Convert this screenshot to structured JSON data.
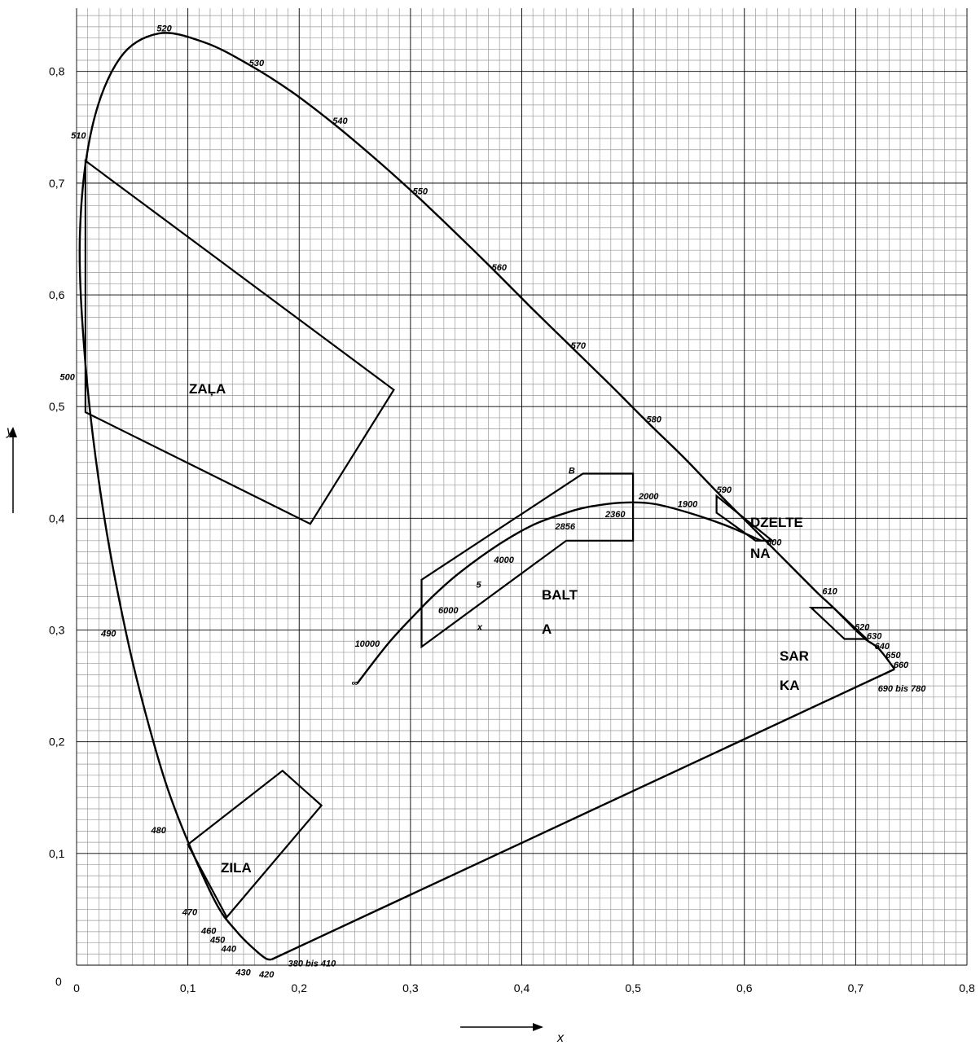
{
  "chart_data": {
    "type": "line",
    "title": "",
    "xlabel": "x",
    "ylabel": "y",
    "xlim": [
      0,
      0.8
    ],
    "ylim": [
      0,
      0.85
    ],
    "grid": true,
    "x_ticks": [
      "0",
      "0,1",
      "0,2",
      "0,3",
      "0,4",
      "0,5",
      "0,6",
      "0,7",
      "0,8"
    ],
    "y_ticks": [
      "0",
      "0,1",
      "0,2",
      "0,3",
      "0,4",
      "0,5",
      "0,6",
      "0,7",
      "0,8"
    ],
    "spectral_locus": [
      [
        0.175,
        0.005
      ],
      [
        0.17,
        0.006
      ],
      [
        0.16,
        0.014
      ],
      [
        0.144,
        0.03
      ],
      [
        0.124,
        0.058
      ],
      [
        0.091,
        0.133
      ],
      [
        0.069,
        0.2
      ],
      [
        0.045,
        0.295
      ],
      [
        0.023,
        0.413
      ],
      [
        0.008,
        0.538
      ],
      [
        0.003,
        0.654
      ],
      [
        0.014,
        0.75
      ],
      [
        0.039,
        0.812
      ],
      [
        0.074,
        0.834
      ],
      [
        0.115,
        0.826
      ],
      [
        0.155,
        0.806
      ],
      [
        0.193,
        0.782
      ],
      [
        0.23,
        0.754
      ],
      [
        0.266,
        0.724
      ],
      [
        0.302,
        0.692
      ],
      [
        0.337,
        0.659
      ],
      [
        0.373,
        0.624
      ],
      [
        0.408,
        0.589
      ],
      [
        0.444,
        0.554
      ],
      [
        0.479,
        0.52
      ],
      [
        0.512,
        0.487
      ],
      [
        0.545,
        0.455
      ],
      [
        0.575,
        0.424
      ],
      [
        0.603,
        0.396
      ],
      [
        0.627,
        0.372
      ],
      [
        0.648,
        0.351
      ],
      [
        0.666,
        0.333
      ],
      [
        0.68,
        0.32
      ],
      [
        0.691,
        0.309
      ],
      [
        0.701,
        0.299
      ],
      [
        0.71,
        0.291
      ],
      [
        0.721,
        0.283
      ],
      [
        0.735,
        0.265
      ]
    ],
    "purple_line": [
      [
        0.175,
        0.005
      ],
      [
        0.735,
        0.265
      ]
    ],
    "planckian_locus": [
      [
        0.252,
        0.252
      ],
      [
        0.28,
        0.288
      ],
      [
        0.306,
        0.316
      ],
      [
        0.322,
        0.332
      ],
      [
        0.345,
        0.352
      ],
      [
        0.38,
        0.377
      ],
      [
        0.41,
        0.394
      ],
      [
        0.437,
        0.404
      ],
      [
        0.459,
        0.41
      ],
      [
        0.49,
        0.414
      ],
      [
        0.518,
        0.413
      ],
      [
        0.55,
        0.405
      ],
      [
        0.585,
        0.393
      ],
      [
        0.615,
        0.38
      ]
    ],
    "regions": [
      {
        "label": "ZAĻA",
        "points": [
          [
            0.008,
            0.72
          ],
          [
            0.285,
            0.515
          ],
          [
            0.21,
            0.395
          ],
          [
            0.008,
            0.495
          ]
        ]
      },
      {
        "label": "ZILA",
        "points": [
          [
            0.1,
            0.108
          ],
          [
            0.185,
            0.174
          ],
          [
            0.22,
            0.143
          ],
          [
            0.135,
            0.043
          ]
        ]
      },
      {
        "label": "BALT A",
        "points": [
          [
            0.31,
            0.345
          ],
          [
            0.455,
            0.44
          ],
          [
            0.5,
            0.44
          ],
          [
            0.5,
            0.38
          ],
          [
            0.44,
            0.38
          ],
          [
            0.31,
            0.285
          ]
        ]
      },
      {
        "label": "DZELTE NA",
        "points": [
          [
            0.575,
            0.42
          ],
          [
            0.575,
            0.405
          ],
          [
            0.61,
            0.38
          ],
          [
            0.625,
            0.38
          ]
        ]
      },
      {
        "label": "SAR KA",
        "points": [
          [
            0.66,
            0.32
          ],
          [
            0.68,
            0.32
          ],
          [
            0.71,
            0.292
          ],
          [
            0.69,
            0.292
          ]
        ]
      }
    ],
    "region_labels": {
      "green": "ZAĻA",
      "blue": "ZILA",
      "white_1": "BALT",
      "white_2": "A",
      "yellow_1": "DZELTE",
      "yellow_2": "NA",
      "red_1": "SAR",
      "red_2": "KA"
    },
    "wavelength_labels": [
      {
        "text": "520",
        "x": 0.072,
        "y": 0.836
      },
      {
        "text": "530",
        "x": 0.155,
        "y": 0.805
      },
      {
        "text": "540",
        "x": 0.23,
        "y": 0.753
      },
      {
        "text": "550",
        "x": 0.302,
        "y": 0.69
      },
      {
        "text": "560",
        "x": 0.373,
        "y": 0.622
      },
      {
        "text": "570",
        "x": 0.444,
        "y": 0.552
      },
      {
        "text": "580",
        "x": 0.512,
        "y": 0.486
      },
      {
        "text": "590",
        "x": 0.575,
        "y": 0.423
      },
      {
        "text": "600",
        "x": 0.62,
        "y": 0.376
      },
      {
        "text": "610",
        "x": 0.67,
        "y": 0.332
      },
      {
        "text": "620",
        "x": 0.699,
        "y": 0.3
      },
      {
        "text": "630",
        "x": 0.71,
        "y": 0.292
      },
      {
        "text": "640",
        "x": 0.717,
        "y": 0.283
      },
      {
        "text": "650",
        "x": 0.727,
        "y": 0.275
      },
      {
        "text": "660",
        "x": 0.734,
        "y": 0.266
      },
      {
        "text": "690 bis 780",
        "x": 0.72,
        "y": 0.245
      },
      {
        "text": "510",
        "x": -0.005,
        "y": 0.74
      },
      {
        "text": "500",
        "x": -0.015,
        "y": 0.524
      },
      {
        "text": "490",
        "x": 0.022,
        "y": 0.294
      },
      {
        "text": "480",
        "x": 0.067,
        "y": 0.118
      },
      {
        "text": "470",
        "x": 0.095,
        "y": 0.045
      },
      {
        "text": "460",
        "x": 0.112,
        "y": 0.028
      },
      {
        "text": "450",
        "x": 0.12,
        "y": 0.02
      },
      {
        "text": "440",
        "x": 0.13,
        "y": 0.012
      },
      {
        "text": "430",
        "x": 0.143,
        "y": -0.009
      },
      {
        "text": "420",
        "x": 0.164,
        "y": -0.011
      },
      {
        "text": "380 bis 410",
        "x": 0.19,
        "y": -0.001
      }
    ],
    "cct_labels": [
      {
        "text": "∞",
        "x": 0.247,
        "y": 0.25
      },
      {
        "text": "10000",
        "x": 0.25,
        "y": 0.285
      },
      {
        "text": "6000",
        "x": 0.325,
        "y": 0.315
      },
      {
        "text": "5",
        "x": 0.359,
        "y": 0.338
      },
      {
        "text": "x",
        "x": 0.36,
        "y": 0.3
      },
      {
        "text": "4000",
        "x": 0.375,
        "y": 0.36
      },
      {
        "text": "2856",
        "x": 0.43,
        "y": 0.39
      },
      {
        "text": "2360",
        "x": 0.475,
        "y": 0.401
      },
      {
        "text": "2000",
        "x": 0.505,
        "y": 0.417
      },
      {
        "text": "1900",
        "x": 0.54,
        "y": 0.41
      },
      {
        "text": "B",
        "x": 0.442,
        "y": 0.44
      }
    ]
  }
}
